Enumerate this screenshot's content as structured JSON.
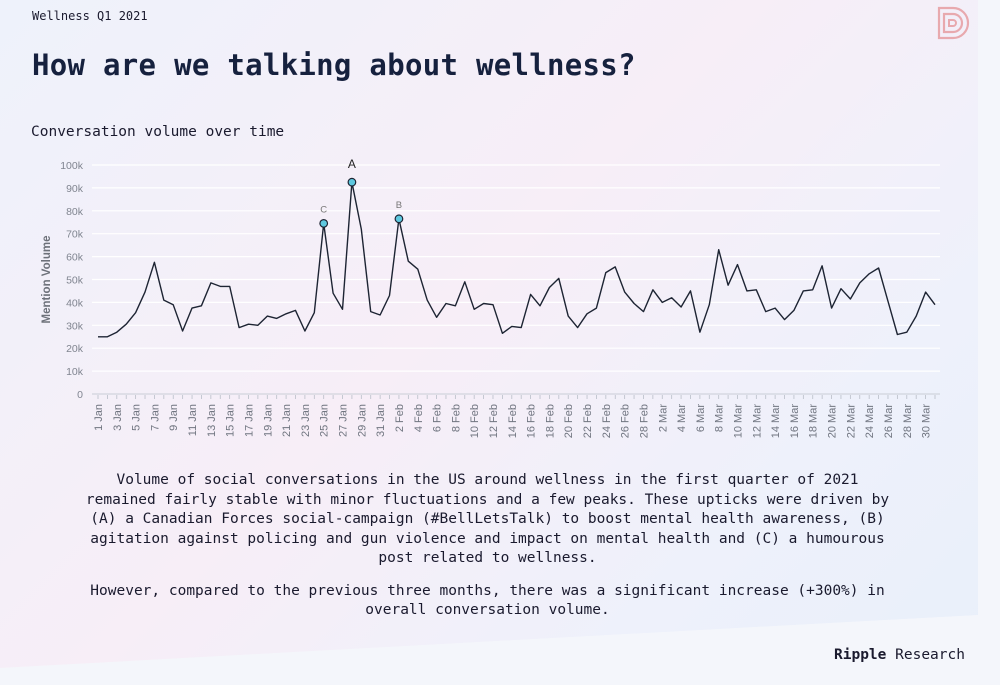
{
  "header": {
    "kicker": "Wellness Q1 2021",
    "title": "How are we talking about wellness?",
    "chart_title": "Conversation volume over time"
  },
  "chart_data": {
    "type": "line",
    "title": "Conversation volume over time",
    "ylabel": "Mention Volume",
    "xlabel": "",
    "ylim": [
      0,
      100000
    ],
    "y_ticks": [
      0,
      10000,
      20000,
      30000,
      40000,
      50000,
      60000,
      70000,
      80000,
      90000,
      100000
    ],
    "y_tick_labels": [
      "0",
      "10k",
      "20k",
      "30k",
      "40k",
      "50k",
      "60k",
      "70k",
      "80k",
      "90k",
      "100k"
    ],
    "grid": true,
    "legend": "none",
    "x_tick_labels": [
      "1 Jan",
      "3 Jan",
      "5 Jan",
      "7 Jan",
      "9 Jan",
      "11 Jan",
      "13 Jan",
      "15 Jan",
      "17 Jan",
      "19 Jan",
      "21 Jan",
      "23 Jan",
      "25 Jan",
      "27 Jan",
      "29 Jan",
      "31 Jan",
      "2 Feb",
      "4 Feb",
      "6 Feb",
      "8 Feb",
      "10 Feb",
      "12 Feb",
      "14 Feb",
      "16 Feb",
      "18 Feb",
      "20 Feb",
      "22 Feb",
      "24 Feb",
      "26 Feb",
      "28 Feb",
      "2 Mar",
      "4 Mar",
      "6 Mar",
      "8 Mar",
      "10 Mar",
      "12 Mar",
      "14 Mar",
      "16 Mar",
      "18 Mar",
      "20 Mar",
      "22 Mar",
      "24 Mar",
      "26 Mar",
      "28 Mar",
      "30 Mar"
    ],
    "x": [
      "1 Jan",
      "2 Jan",
      "3 Jan",
      "4 Jan",
      "5 Jan",
      "6 Jan",
      "7 Jan",
      "8 Jan",
      "9 Jan",
      "10 Jan",
      "11 Jan",
      "12 Jan",
      "13 Jan",
      "14 Jan",
      "15 Jan",
      "16 Jan",
      "17 Jan",
      "18 Jan",
      "19 Jan",
      "20 Jan",
      "21 Jan",
      "22 Jan",
      "23 Jan",
      "24 Jan",
      "25 Jan",
      "26 Jan",
      "27 Jan",
      "28 Jan",
      "29 Jan",
      "30 Jan",
      "31 Jan",
      "1 Feb",
      "2 Feb",
      "3 Feb",
      "4 Feb",
      "5 Feb",
      "6 Feb",
      "7 Feb",
      "8 Feb",
      "9 Feb",
      "10 Feb",
      "11 Feb",
      "12 Feb",
      "13 Feb",
      "14 Feb",
      "15 Feb",
      "16 Feb",
      "17 Feb",
      "18 Feb",
      "19 Feb",
      "20 Feb",
      "21 Feb",
      "22 Feb",
      "23 Feb",
      "24 Feb",
      "25 Feb",
      "26 Feb",
      "27 Feb",
      "28 Feb",
      "1 Mar",
      "2 Mar",
      "3 Mar",
      "4 Mar",
      "5 Mar",
      "6 Mar",
      "7 Mar",
      "8 Mar",
      "9 Mar",
      "10 Mar",
      "11 Mar",
      "12 Mar",
      "13 Mar",
      "14 Mar",
      "15 Mar",
      "16 Mar",
      "17 Mar",
      "18 Mar",
      "19 Mar",
      "20 Mar",
      "21 Mar",
      "22 Mar",
      "23 Mar",
      "24 Mar",
      "25 Mar",
      "26 Mar",
      "27 Mar",
      "28 Mar",
      "29 Mar",
      "30 Mar",
      "31 Mar"
    ],
    "series": [
      {
        "values": [
          25000,
          25000,
          27000,
          30500,
          35500,
          44500,
          57500,
          41000,
          39000,
          27500,
          37500,
          38500,
          48500,
          47000,
          47000,
          29000,
          30500,
          30000,
          34000,
          33000,
          35000,
          36500,
          27500,
          35500,
          74500,
          44000,
          37000,
          92500,
          72000,
          36000,
          34500,
          43000,
          76500,
          58000,
          54500,
          41000,
          33500,
          39500,
          38500,
          49000,
          37000,
          39500,
          39000,
          26500,
          29500,
          29000,
          43500,
          38500,
          46500,
          50500,
          34000,
          29000,
          35000,
          37500,
          53000,
          55500,
          44500,
          39500,
          36000,
          45500,
          40000,
          42000,
          38000,
          45000,
          27000,
          39000,
          63000,
          47500,
          56500,
          45000,
          45500,
          36000,
          37500,
          32500,
          36500,
          45000,
          45500,
          56000,
          37500,
          46000,
          41500,
          48500,
          52500,
          55000,
          40500,
          26000,
          27000,
          34000,
          44500,
          39000
        ]
      }
    ],
    "annotations": [
      {
        "label": "A",
        "x": "28 Jan",
        "y": 92500
      },
      {
        "label": "B",
        "x": "2 Feb",
        "y": 76500
      },
      {
        "label": "C",
        "x": "25 Jan",
        "y": 74500
      }
    ],
    "line_color": "#1d2433",
    "marker_color": "#5ec8df"
  },
  "description": {
    "paragraph1": "Volume of social conversations in the US around wellness in the first quarter of 2021 remained fairly stable with minor fluctuations and a few peaks. These upticks were driven by (A) a Canadian Forces social-campaign (#BellLetsTalk) to boost mental health awareness, (B) agitation against policing and gun violence and impact on mental health and (C) a humourous post related to wellness.",
    "paragraph2": "However, compared to the previous three months, there was a significant increase (+300%) in overall conversation volume."
  },
  "footer": {
    "brand_bold": "Ripple",
    "brand_rest": "Research"
  },
  "logo": {
    "icon": "ripple-logo-icon",
    "color": "#e8a9ae"
  }
}
